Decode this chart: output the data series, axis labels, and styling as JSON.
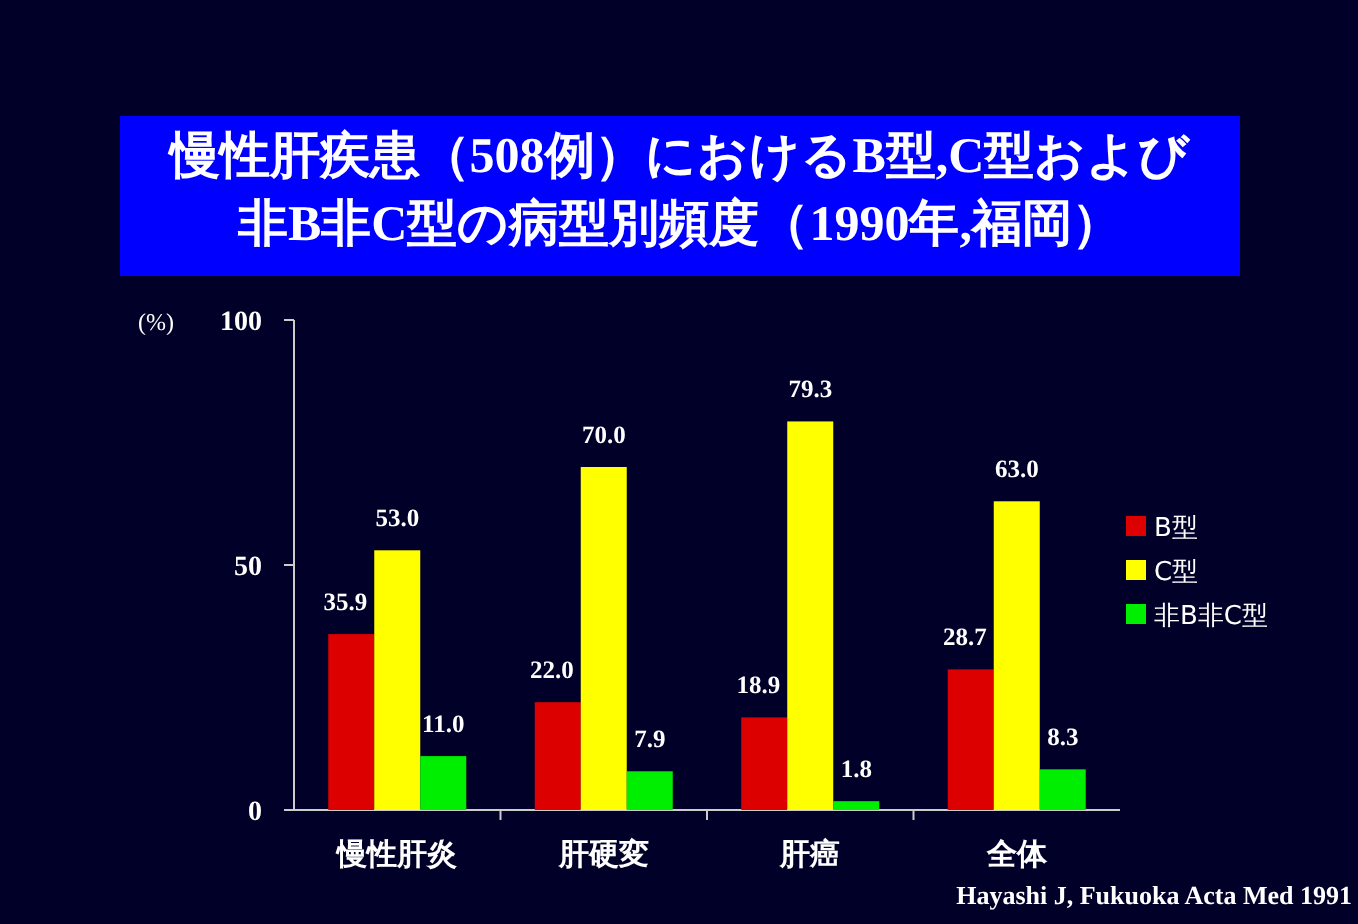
{
  "chart_data": {
    "type": "bar",
    "title": "慢性肝疾患（508例）におけるB型,C型および非B非C型の病型別頻度（1990年,福岡）",
    "ylabel": "(%)",
    "categories": [
      "慢性肝炎",
      "肝硬変",
      "肝癌",
      "全体"
    ],
    "series": [
      {
        "name": "B型",
        "color": "#dd0000",
        "values": [
          35.9,
          22.0,
          18.9,
          28.7
        ],
        "value_labels": [
          "35.9",
          "22.0",
          "18.9",
          "28.7"
        ]
      },
      {
        "name": "C型",
        "color": "#ffff00",
        "values": [
          53.0,
          70.0,
          79.3,
          63.0
        ],
        "value_labels": [
          "53.0",
          "70.0",
          "79.3",
          "63.0"
        ]
      },
      {
        "name": "非B非C型",
        "color": "#00ee00",
        "values": [
          11.0,
          7.9,
          1.8,
          8.3
        ],
        "value_labels": [
          "11.0",
          "7.9",
          "1.8",
          "8.3"
        ]
      }
    ],
    "ylim": [
      0,
      100
    ],
    "yticks": [
      0,
      50,
      100
    ],
    "legend": "right",
    "grid": false,
    "annotations": [
      "Hayashi J, Fukuoka Acta Med 1991"
    ]
  }
}
